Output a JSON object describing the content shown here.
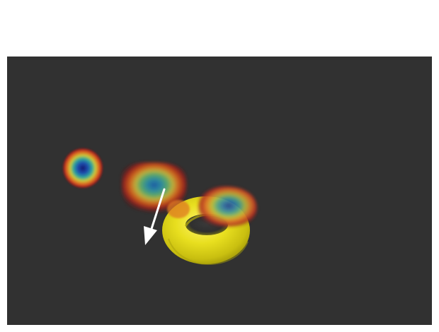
{
  "scene": {
    "viewport_name": "3d-render-viewport",
    "background_color": "#313131",
    "torus_color": "#e4dd1c",
    "arrow_color": "#ffffff",
    "heatmap_colors": {
      "low": "#8b1a1a",
      "mid_low": "#e0661a",
      "mid": "#f0d22a",
      "mid_high": "#38a86a",
      "high": "#1a3a9a"
    }
  }
}
